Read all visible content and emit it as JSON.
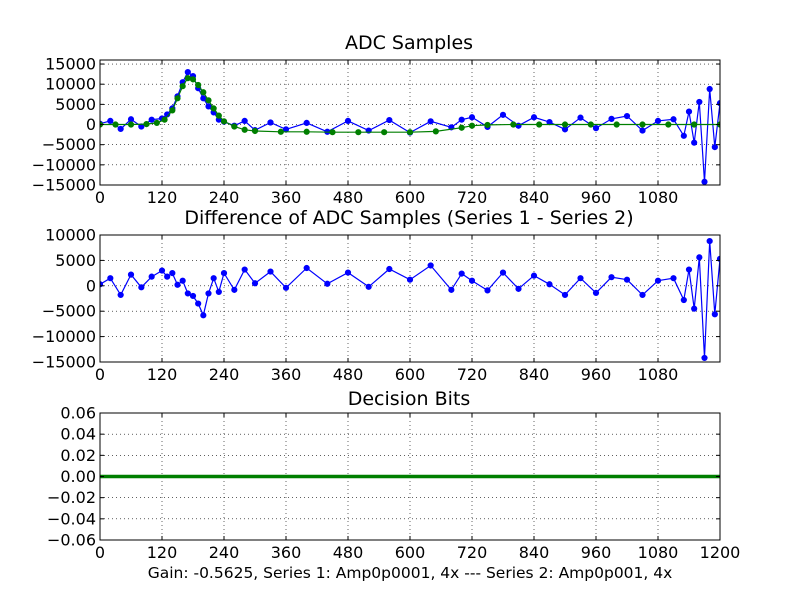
{
  "figure": {
    "xlabel": "Gain: -0.5625, Series 1: Amp0p0001, 4x --- Series 2: Amp0p001, 4x"
  },
  "colors": {
    "series1": "#0000ff",
    "series2": "#007f00",
    "axis": "#000000",
    "grid": "#000000"
  },
  "chart_data": [
    {
      "type": "line",
      "title": "ADC Samples",
      "xlabel": "",
      "ylabel": "",
      "xlim": [
        0,
        1200
      ],
      "ylim": [
        -15000,
        16000
      ],
      "grid": true,
      "x_ticks": [
        0,
        120,
        240,
        360,
        480,
        600,
        720,
        840,
        960,
        1080
      ],
      "x_tick_labels": [
        "0",
        "120",
        "240",
        "360",
        "480",
        "600",
        "720",
        "840",
        "960",
        "1080"
      ],
      "y_ticks": [
        -15000,
        -10000,
        -5000,
        0,
        5000,
        10000,
        15000
      ],
      "y_tick_labels": [
        "−15000",
        "−10000",
        "−5000",
        "0",
        "5000",
        "10000",
        "15000"
      ],
      "series": [
        {
          "color": "#0000ff",
          "marker": "dot",
          "x": [
            0,
            20,
            40,
            60,
            80,
            100,
            120,
            130,
            140,
            150,
            160,
            170,
            180,
            190,
            200,
            210,
            220,
            230,
            240,
            260,
            280,
            300,
            330,
            360,
            400,
            440,
            480,
            520,
            560,
            600,
            640,
            680,
            700,
            720,
            750,
            780,
            810,
            840,
            870,
            900,
            930,
            960,
            990,
            1020,
            1050,
            1080,
            1110,
            1130,
            1140,
            1150,
            1160,
            1170,
            1180,
            1190,
            1200
          ],
          "y": [
            200,
            900,
            -1100,
            1300,
            -500,
            1200,
            1500,
            2500,
            4000,
            7000,
            10500,
            13000,
            12000,
            9000,
            6500,
            4500,
            3000,
            1200,
            700,
            -300,
            900,
            -1400,
            500,
            -1200,
            400,
            -1800,
            900,
            -1500,
            1100,
            -2000,
            800,
            -700,
            1200,
            1800,
            -600,
            2400,
            -300,
            1800,
            600,
            -1200,
            1700,
            -900,
            1400,
            2100,
            -1500,
            900,
            1300,
            -2800,
            3200,
            -4500,
            5600,
            -14200,
            8800,
            -5600,
            5300
          ]
        },
        {
          "color": "#007f00",
          "marker": "dot",
          "x": [
            0,
            30,
            60,
            90,
            110,
            125,
            140,
            150,
            160,
            170,
            180,
            190,
            200,
            210,
            220,
            230,
            240,
            260,
            280,
            300,
            350,
            400,
            450,
            500,
            550,
            600,
            650,
            700,
            720,
            750,
            800,
            850,
            900,
            950,
            1000,
            1050,
            1100,
            1150,
            1200
          ],
          "y": [
            0,
            0,
            0,
            100,
            400,
            1200,
            3500,
            6500,
            9500,
            11500,
            11200,
            9800,
            8000,
            6000,
            4000,
            2200,
            800,
            -500,
            -1300,
            -1600,
            -1800,
            -1800,
            -1900,
            -1900,
            -1900,
            -1900,
            -1700,
            -800,
            -300,
            -100,
            0,
            0,
            0,
            0,
            0,
            0,
            0,
            0,
            0
          ]
        }
      ]
    },
    {
      "type": "line",
      "title": "Difference of ADC Samples (Series 1 - Series 2)",
      "xlabel": "",
      "ylabel": "",
      "xlim": [
        0,
        1200
      ],
      "ylim": [
        -15000,
        10000
      ],
      "grid": true,
      "x_ticks": [
        0,
        120,
        240,
        360,
        480,
        600,
        720,
        840,
        960,
        1080
      ],
      "x_tick_labels": [
        "0",
        "120",
        "240",
        "360",
        "480",
        "600",
        "720",
        "840",
        "960",
        "1080"
      ],
      "y_ticks": [
        -15000,
        -10000,
        -5000,
        0,
        5000,
        10000
      ],
      "y_tick_labels": [
        "−15000",
        "−10000",
        "−5000",
        "0",
        "5000",
        "10000"
      ],
      "series": [
        {
          "color": "#0000ff",
          "marker": "dot",
          "x": [
            0,
            20,
            40,
            60,
            80,
            100,
            120,
            130,
            140,
            150,
            160,
            170,
            180,
            190,
            200,
            210,
            220,
            230,
            240,
            260,
            280,
            300,
            330,
            360,
            400,
            440,
            480,
            520,
            560,
            600,
            640,
            680,
            700,
            720,
            750,
            780,
            810,
            840,
            870,
            900,
            930,
            960,
            990,
            1020,
            1050,
            1080,
            1110,
            1130,
            1140,
            1150,
            1160,
            1170,
            1180,
            1190,
            1200
          ],
          "y": [
            300,
            1500,
            -1800,
            2200,
            -300,
            1800,
            3000,
            1800,
            2500,
            200,
            1000,
            -1500,
            -2000,
            -3500,
            -5800,
            -1500,
            1500,
            -1200,
            2500,
            -800,
            3200,
            500,
            2800,
            -400,
            3500,
            400,
            2600,
            -200,
            3300,
            1200,
            4000,
            -800,
            2400,
            1000,
            -900,
            2600,
            -600,
            2000,
            300,
            -1800,
            1500,
            -1400,
            1700,
            1200,
            -1800,
            1000,
            1500,
            -2800,
            3200,
            -4500,
            5600,
            -14200,
            8800,
            -5600,
            5300
          ]
        }
      ]
    },
    {
      "type": "line",
      "title": "Decision Bits",
      "xlabel": "",
      "ylabel": "",
      "xlim": [
        0,
        1200
      ],
      "ylim": [
        -0.06,
        0.06
      ],
      "grid": true,
      "x_ticks": [
        0,
        120,
        240,
        360,
        480,
        600,
        720,
        840,
        960,
        1080,
        1200
      ],
      "x_tick_labels": [
        "0",
        "120",
        "240",
        "360",
        "480",
        "600",
        "720",
        "840",
        "960",
        "1080",
        "1200"
      ],
      "y_ticks": [
        -0.06,
        -0.04,
        -0.02,
        0.0,
        0.02,
        0.04,
        0.06
      ],
      "y_tick_labels": [
        "−0.06",
        "−0.04",
        "−0.02",
        "0.00",
        "0.02",
        "0.04",
        "0.06"
      ],
      "series": [
        {
          "color": "#007f00",
          "marker": "dot",
          "x": [
            0,
            1200
          ],
          "y": [
            0,
            0
          ]
        }
      ]
    }
  ]
}
